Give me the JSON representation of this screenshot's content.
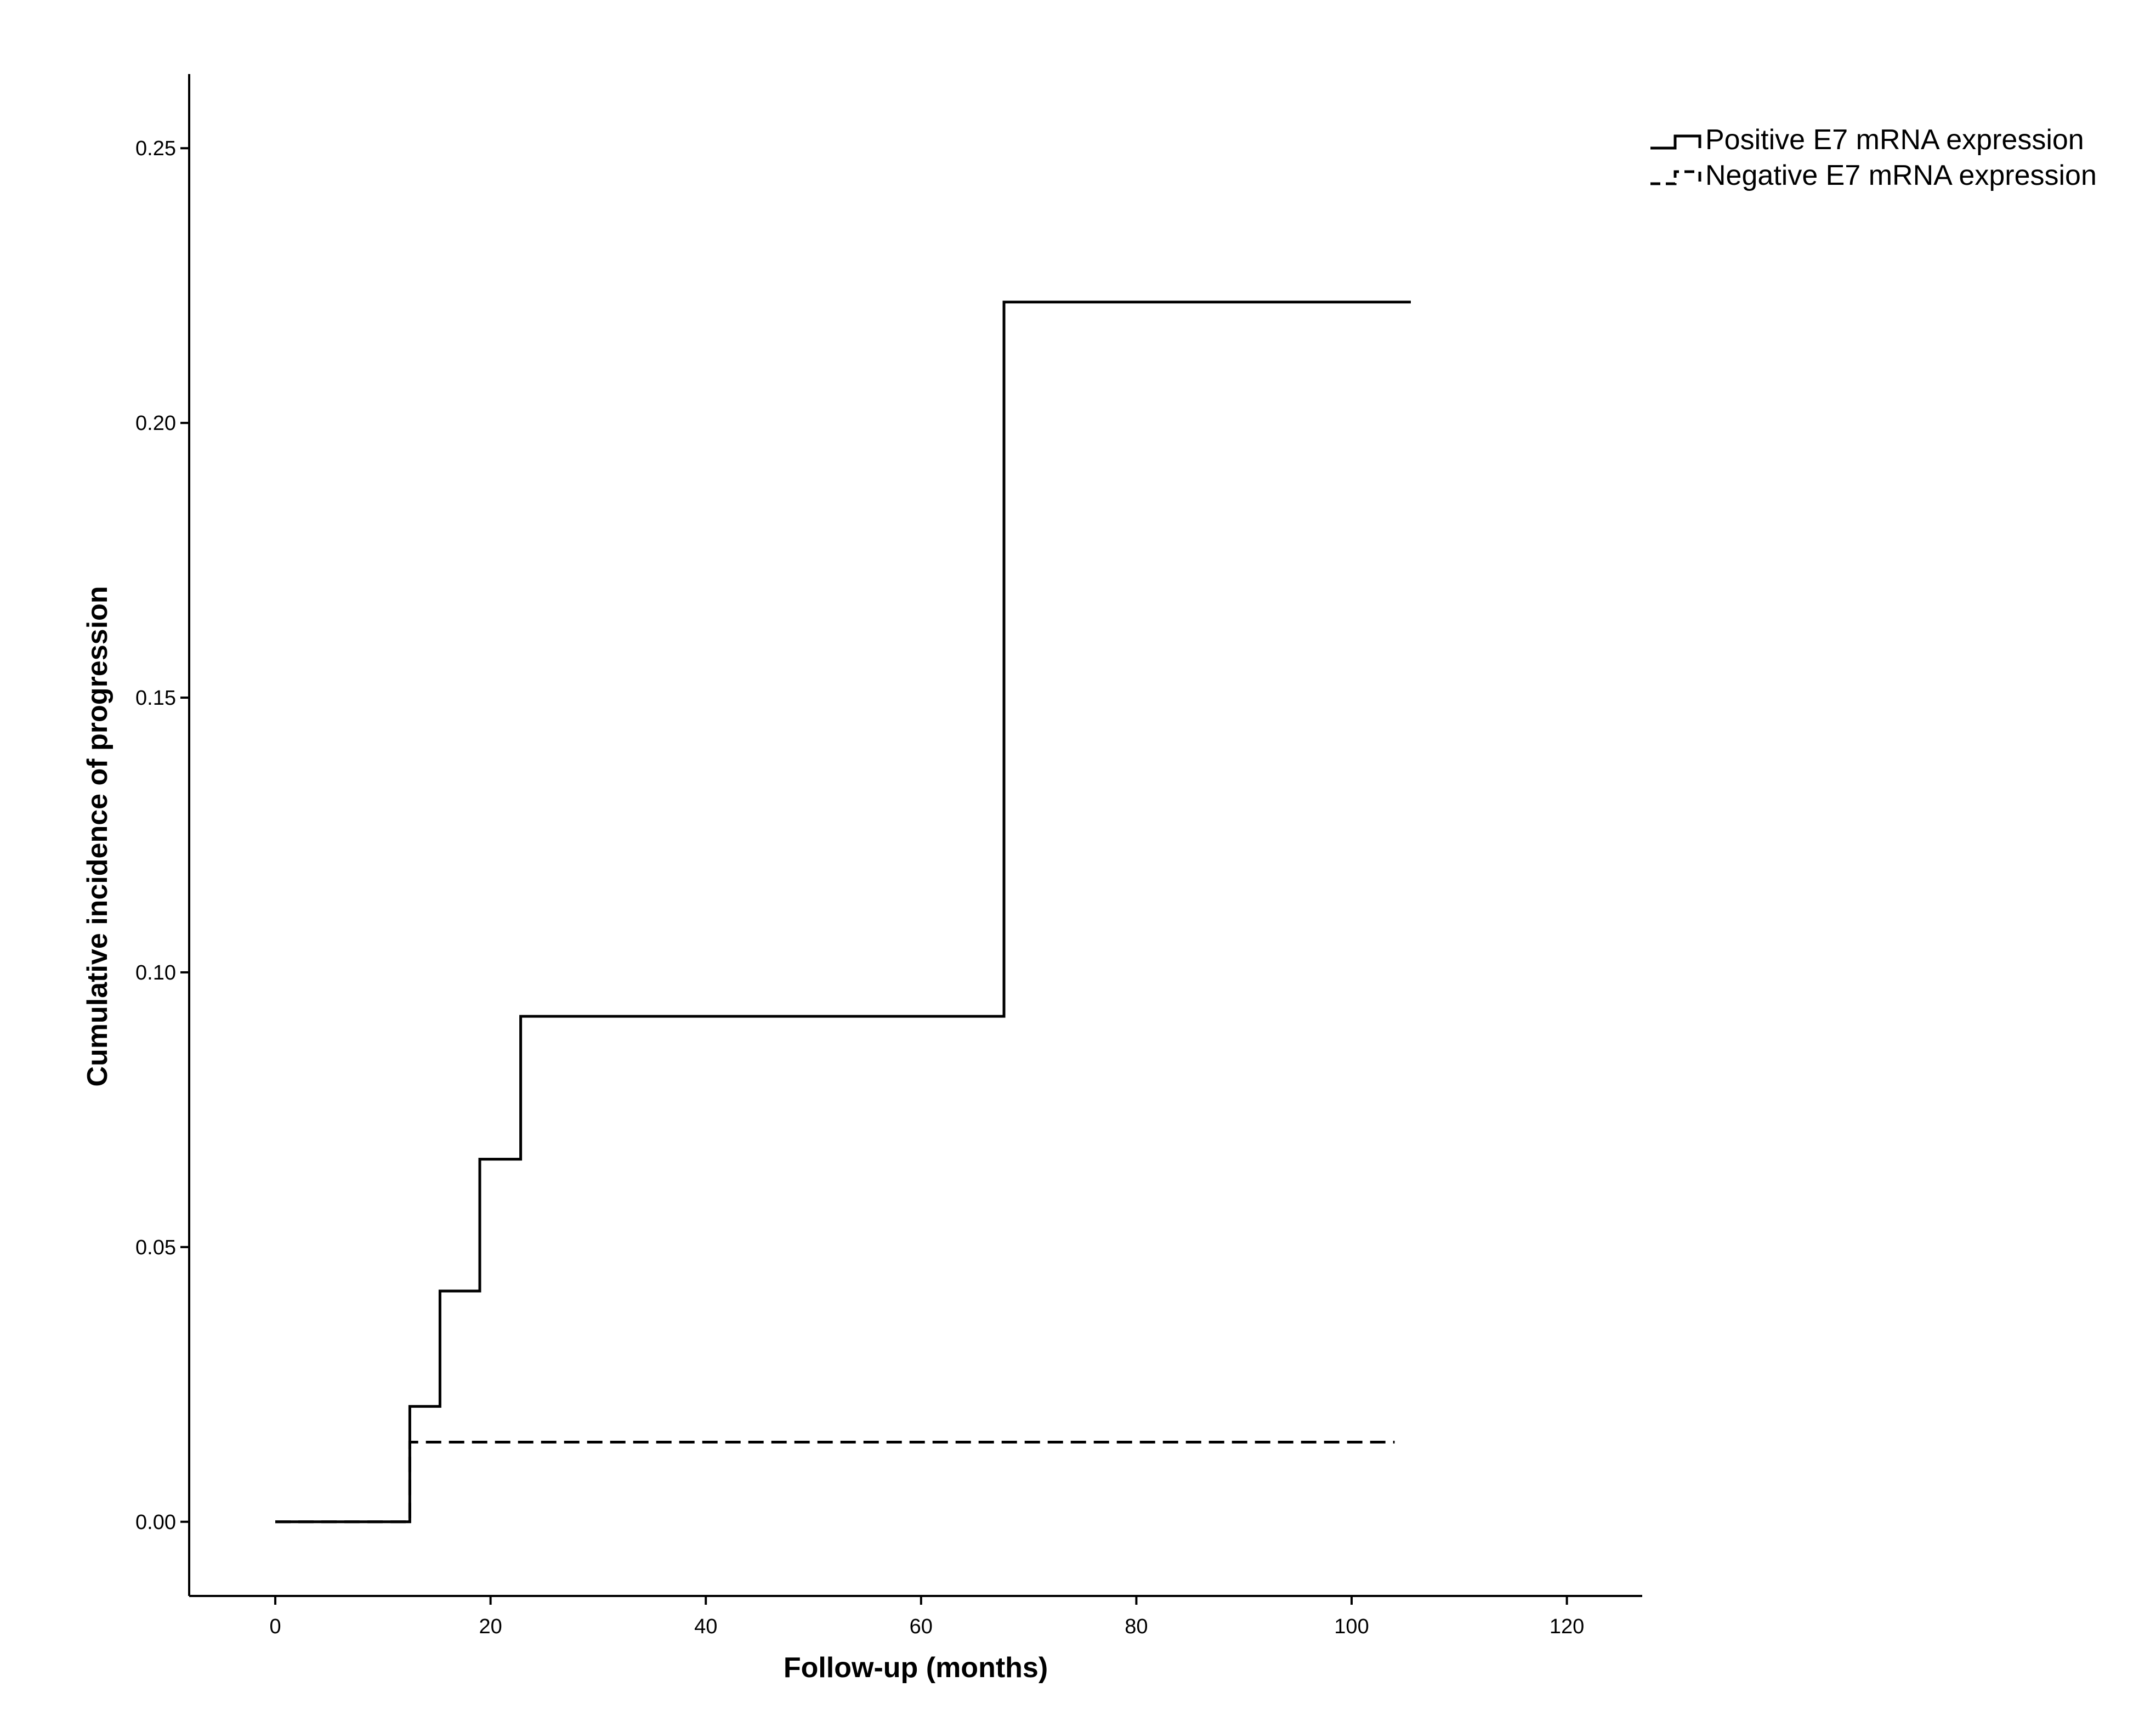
{
  "chart_data": {
    "type": "line",
    "step": true,
    "xlabel": "Follow-up (months)",
    "ylabel": "Cumulative incidence of progression",
    "xlim": [
      -8,
      127
    ],
    "ylim": [
      -0.0135,
      0.2635
    ],
    "xticks": [
      0,
      20,
      40,
      60,
      80,
      100,
      120
    ],
    "xtick_labels": [
      "0",
      "20",
      "40",
      "60",
      "80",
      "100",
      "120"
    ],
    "yticks": [
      0.0,
      0.05,
      0.1,
      0.15,
      0.2,
      0.25
    ],
    "ytick_labels": [
      "0.00",
      "0.05",
      "0.10",
      "0.15",
      "0.20",
      "0.25"
    ],
    "grid": false,
    "legend_position": "top-right",
    "series": [
      {
        "name": "Positive E7 mRNA expression",
        "style": "solid",
        "color": "#000000",
        "points": [
          [
            0,
            0.0
          ],
          [
            12.5,
            0.0
          ],
          [
            12.5,
            0.021
          ],
          [
            15.3,
            0.021
          ],
          [
            15.3,
            0.042
          ],
          [
            19.0,
            0.042
          ],
          [
            19.0,
            0.066
          ],
          [
            22.8,
            0.066
          ],
          [
            22.8,
            0.092
          ],
          [
            67.7,
            0.092
          ],
          [
            67.7,
            0.222
          ],
          [
            105.5,
            0.222
          ]
        ]
      },
      {
        "name": "Negative E7 mRNA expression",
        "style": "dashed",
        "color": "#000000",
        "points": [
          [
            0,
            0.0
          ],
          [
            12.5,
            0.0
          ],
          [
            12.5,
            0.0145
          ],
          [
            104.0,
            0.0145
          ]
        ]
      }
    ]
  }
}
